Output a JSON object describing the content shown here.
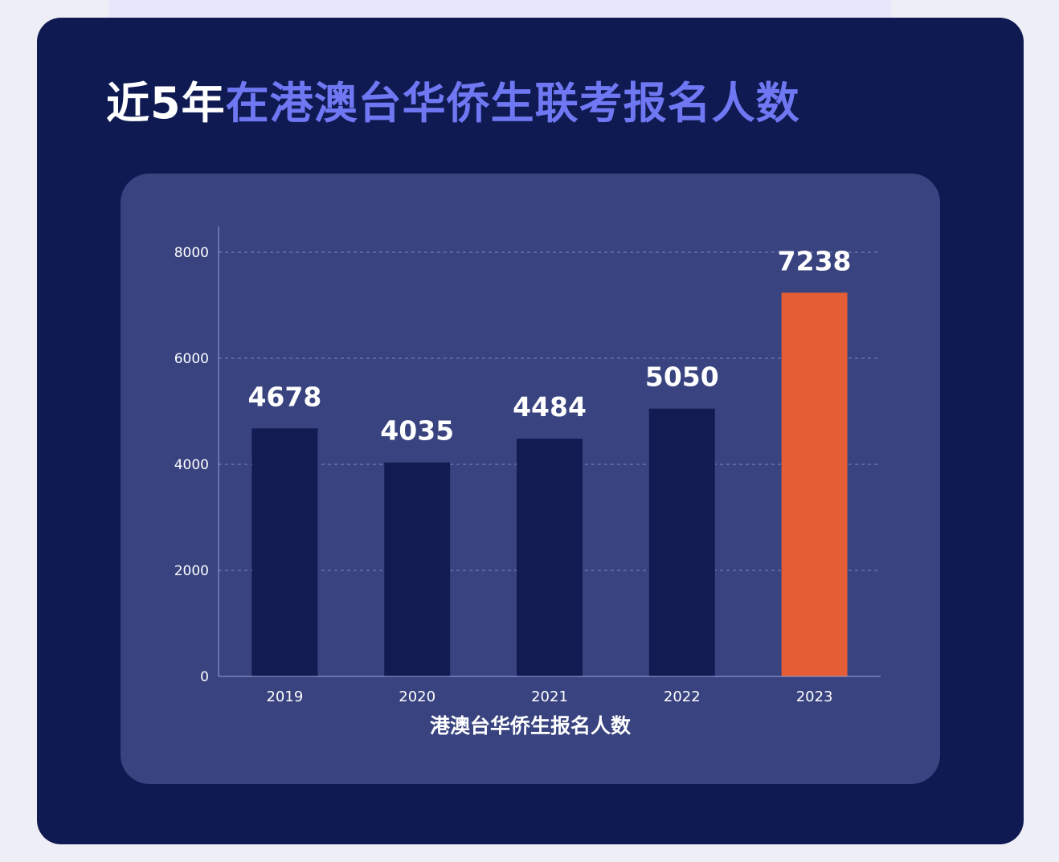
{
  "title": {
    "prefix": "近5年",
    "highlight": "在港澳台华侨生联考报名人数"
  },
  "colors": {
    "card_bg": "#0f1a52",
    "panel_bg": "#38437f",
    "bar_default": "#131c52",
    "bar_highlight": "#e45d34",
    "title_accent": "#6f78f2"
  },
  "chart_data": {
    "type": "bar",
    "categories": [
      "2019",
      "2020",
      "2021",
      "2022",
      "2023"
    ],
    "values": [
      4678,
      4035,
      4484,
      5050,
      7238
    ],
    "value_labels": [
      "4678",
      "4035",
      "4484",
      "5050",
      "7238"
    ],
    "highlight_index": 4,
    "xlabel": "港澳台华侨生报名人数",
    "ylabel": "",
    "ylim": [
      0,
      8000
    ],
    "yticks": [
      0,
      2000,
      4000,
      6000,
      8000
    ],
    "ytick_labels": [
      "0",
      "2000",
      "4000",
      "6000",
      "8000"
    ],
    "grid": true,
    "grid_style": "dashed",
    "legend": "none"
  }
}
